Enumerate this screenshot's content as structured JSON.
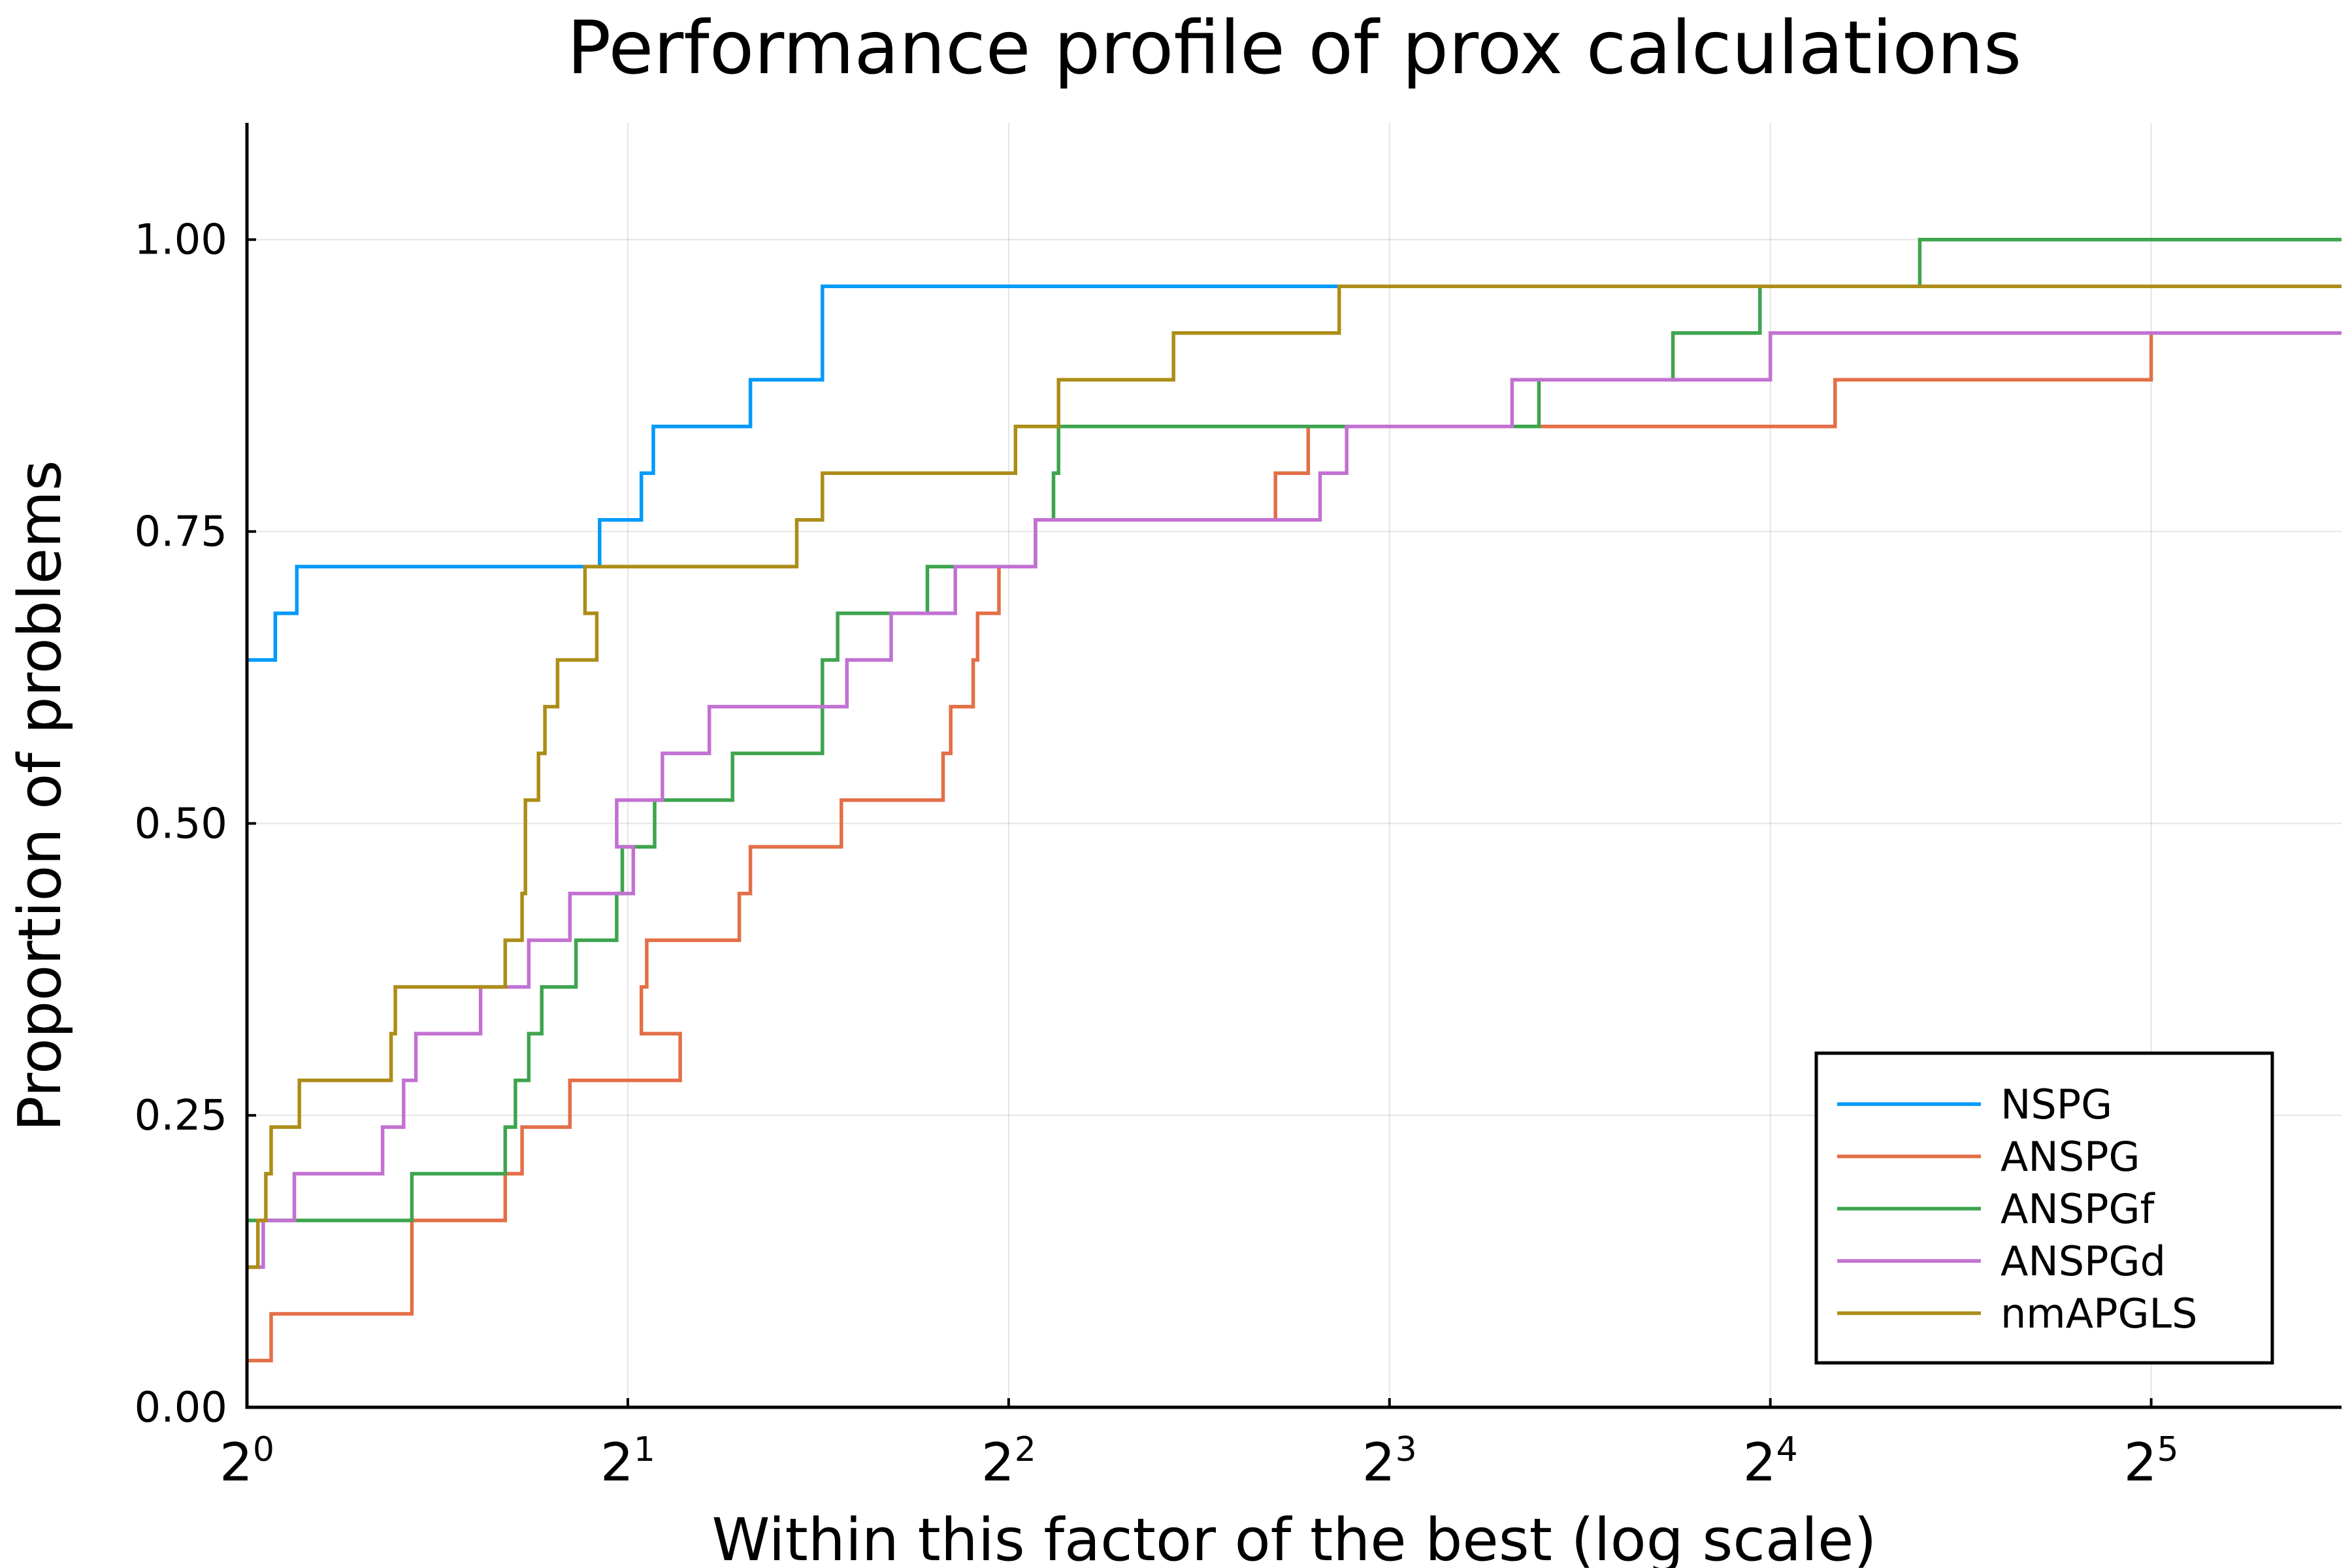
{
  "chart_data": {
    "type": "line",
    "step": true,
    "title": "Performance profile of prox calculations",
    "xlabel": "Within this factor of the best (log scale)",
    "ylabel": "Proportion of problems",
    "x_scale": "log2",
    "xlim": [
      1,
      45.25
    ],
    "ylim": [
      0,
      1.1
    ],
    "x_ticks": [
      {
        "value": 1,
        "base": "2",
        "exp": "0"
      },
      {
        "value": 2,
        "base": "2",
        "exp": "1"
      },
      {
        "value": 4,
        "base": "2",
        "exp": "2"
      },
      {
        "value": 8,
        "base": "2",
        "exp": "3"
      },
      {
        "value": 16,
        "base": "2",
        "exp": "4"
      },
      {
        "value": 32,
        "base": "2",
        "exp": "5"
      }
    ],
    "y_ticks": [
      {
        "value": 0,
        "label": "0.00"
      },
      {
        "value": 0.25,
        "label": "0.25"
      },
      {
        "value": 0.5,
        "label": "0.50"
      },
      {
        "value": 0.75,
        "label": "0.75"
      },
      {
        "value": 1.0,
        "label": "1.00"
      }
    ],
    "grid": true,
    "legend_position": "bottom-right",
    "series": [
      {
        "name": "NSPG",
        "color": "#009AFA",
        "points": [
          [
            1.0,
            0.64
          ],
          [
            1.053,
            0.64
          ],
          [
            1.053,
            0.68
          ],
          [
            1.095,
            0.68
          ],
          [
            1.095,
            0.72
          ],
          [
            1.9,
            0.72
          ],
          [
            1.9,
            0.76
          ],
          [
            2.05,
            0.76
          ],
          [
            2.05,
            0.8
          ],
          [
            2.095,
            0.8
          ],
          [
            2.095,
            0.84
          ],
          [
            2.5,
            0.84
          ],
          [
            2.5,
            0.88
          ],
          [
            2.85,
            0.88
          ],
          [
            2.85,
            0.96
          ],
          [
            45.25,
            0.96
          ]
        ]
      },
      {
        "name": "ANSPG",
        "color": "#E36F47",
        "points": [
          [
            1.0,
            0.04
          ],
          [
            1.045,
            0.04
          ],
          [
            1.045,
            0.08
          ],
          [
            1.35,
            0.08
          ],
          [
            1.35,
            0.16
          ],
          [
            1.6,
            0.16
          ],
          [
            1.6,
            0.2
          ],
          [
            1.65,
            0.2
          ],
          [
            1.65,
            0.24
          ],
          [
            1.8,
            0.24
          ],
          [
            1.8,
            0.28
          ],
          [
            2.2,
            0.28
          ],
          [
            2.2,
            0.32
          ],
          [
            2.05,
            0.32
          ],
          [
            2.05,
            0.36
          ],
          [
            2.07,
            0.36
          ],
          [
            2.07,
            0.4
          ],
          [
            2.45,
            0.4
          ],
          [
            2.45,
            0.44
          ],
          [
            2.5,
            0.44
          ],
          [
            2.5,
            0.48
          ],
          [
            2.95,
            0.48
          ],
          [
            2.95,
            0.52
          ],
          [
            3.55,
            0.52
          ],
          [
            3.55,
            0.56
          ],
          [
            3.6,
            0.56
          ],
          [
            3.6,
            0.6
          ],
          [
            3.75,
            0.6
          ],
          [
            3.75,
            0.64
          ],
          [
            3.78,
            0.64
          ],
          [
            3.78,
            0.68
          ],
          [
            3.93,
            0.68
          ],
          [
            3.93,
            0.72
          ],
          [
            4.2,
            0.72
          ],
          [
            4.2,
            0.76
          ],
          [
            6.5,
            0.76
          ],
          [
            6.5,
            0.8
          ],
          [
            6.9,
            0.8
          ],
          [
            6.9,
            0.84
          ],
          [
            10.0,
            0.84
          ],
          [
            10.0,
            0.84
          ],
          [
            18.0,
            0.84
          ],
          [
            18.0,
            0.88
          ],
          [
            32.0,
            0.88
          ],
          [
            32.0,
            0.92
          ],
          [
            45.25,
            0.92
          ]
        ]
      },
      {
        "name": "ANSPGf",
        "color": "#3EA44E",
        "points": [
          [
            1.0,
            0.16
          ],
          [
            1.35,
            0.16
          ],
          [
            1.35,
            0.2
          ],
          [
            1.6,
            0.2
          ],
          [
            1.6,
            0.24
          ],
          [
            1.63,
            0.24
          ],
          [
            1.63,
            0.28
          ],
          [
            1.67,
            0.28
          ],
          [
            1.67,
            0.32
          ],
          [
            1.71,
            0.32
          ],
          [
            1.71,
            0.36
          ],
          [
            1.82,
            0.36
          ],
          [
            1.82,
            0.4
          ],
          [
            1.96,
            0.4
          ],
          [
            1.96,
            0.44
          ],
          [
            1.98,
            0.44
          ],
          [
            1.98,
            0.48
          ],
          [
            2.1,
            0.48
          ],
          [
            2.1,
            0.52
          ],
          [
            2.42,
            0.52
          ],
          [
            2.42,
            0.56
          ],
          [
            2.85,
            0.56
          ],
          [
            2.85,
            0.64
          ],
          [
            2.93,
            0.64
          ],
          [
            2.93,
            0.68
          ],
          [
            3.45,
            0.68
          ],
          [
            3.45,
            0.72
          ],
          [
            4.2,
            0.72
          ],
          [
            4.2,
            0.76
          ],
          [
            4.34,
            0.76
          ],
          [
            4.34,
            0.8
          ],
          [
            4.38,
            0.8
          ],
          [
            4.38,
            0.84
          ],
          [
            10.5,
            0.84
          ],
          [
            10.5,
            0.88
          ],
          [
            13.4,
            0.88
          ],
          [
            13.4,
            0.92
          ],
          [
            15.7,
            0.92
          ],
          [
            15.7,
            0.96
          ],
          [
            21.0,
            0.96
          ],
          [
            21.0,
            1.0
          ],
          [
            45.25,
            1.0
          ]
        ]
      },
      {
        "name": "ANSPGd",
        "color": "#C271D2",
        "points": [
          [
            1.0,
            0.12
          ],
          [
            1.03,
            0.12
          ],
          [
            1.03,
            0.16
          ],
          [
            1.09,
            0.16
          ],
          [
            1.09,
            0.2
          ],
          [
            1.28,
            0.2
          ],
          [
            1.28,
            0.24
          ],
          [
            1.33,
            0.24
          ],
          [
            1.33,
            0.28
          ],
          [
            1.36,
            0.28
          ],
          [
            1.36,
            0.32
          ],
          [
            1.53,
            0.32
          ],
          [
            1.53,
            0.36
          ],
          [
            1.67,
            0.36
          ],
          [
            1.67,
            0.4
          ],
          [
            1.8,
            0.4
          ],
          [
            1.8,
            0.44
          ],
          [
            2.02,
            0.44
          ],
          [
            2.02,
            0.48
          ],
          [
            1.96,
            0.48
          ],
          [
            1.96,
            0.52
          ],
          [
            2.13,
            0.52
          ],
          [
            2.13,
            0.56
          ],
          [
            2.32,
            0.56
          ],
          [
            2.32,
            0.6
          ],
          [
            2.98,
            0.6
          ],
          [
            2.98,
            0.64
          ],
          [
            3.23,
            0.64
          ],
          [
            3.23,
            0.68
          ],
          [
            3.63,
            0.68
          ],
          [
            3.63,
            0.72
          ],
          [
            4.2,
            0.72
          ],
          [
            4.2,
            0.76
          ],
          [
            7.05,
            0.76
          ],
          [
            7.05,
            0.8
          ],
          [
            7.4,
            0.8
          ],
          [
            7.4,
            0.84
          ],
          [
            10.0,
            0.84
          ],
          [
            10.0,
            0.88
          ],
          [
            16.0,
            0.88
          ],
          [
            16.0,
            0.92
          ],
          [
            45.25,
            0.92
          ]
        ]
      },
      {
        "name": "nmAPGLS",
        "color": "#AC8D18",
        "points": [
          [
            1.0,
            0.12
          ],
          [
            1.02,
            0.12
          ],
          [
            1.02,
            0.16
          ],
          [
            1.035,
            0.16
          ],
          [
            1.035,
            0.2
          ],
          [
            1.045,
            0.2
          ],
          [
            1.045,
            0.24
          ],
          [
            1.1,
            0.24
          ],
          [
            1.1,
            0.28
          ],
          [
            1.3,
            0.28
          ],
          [
            1.3,
            0.32
          ],
          [
            1.31,
            0.32
          ],
          [
            1.31,
            0.36
          ],
          [
            1.6,
            0.36
          ],
          [
            1.6,
            0.4
          ],
          [
            1.65,
            0.4
          ],
          [
            1.65,
            0.44
          ],
          [
            1.66,
            0.44
          ],
          [
            1.66,
            0.52
          ],
          [
            1.7,
            0.52
          ],
          [
            1.7,
            0.56
          ],
          [
            1.72,
            0.56
          ],
          [
            1.72,
            0.6
          ],
          [
            1.76,
            0.6
          ],
          [
            1.76,
            0.64
          ],
          [
            1.89,
            0.64
          ],
          [
            1.89,
            0.68
          ],
          [
            1.85,
            0.68
          ],
          [
            1.85,
            0.72
          ],
          [
            2.72,
            0.72
          ],
          [
            2.72,
            0.76
          ],
          [
            2.85,
            0.76
          ],
          [
            2.85,
            0.8
          ],
          [
            4.05,
            0.8
          ],
          [
            4.05,
            0.84
          ],
          [
            4.38,
            0.84
          ],
          [
            4.38,
            0.88
          ],
          [
            5.4,
            0.88
          ],
          [
            5.4,
            0.92
          ],
          [
            7.3,
            0.92
          ],
          [
            7.3,
            0.96
          ],
          [
            45.25,
            0.96
          ]
        ]
      }
    ]
  }
}
